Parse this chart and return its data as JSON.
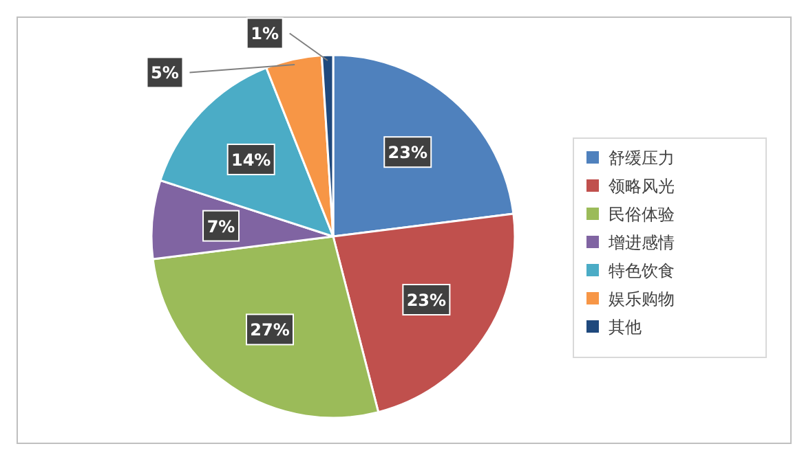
{
  "chart_data": {
    "type": "pie",
    "categories": [
      "舒缓压力",
      "领略风光",
      "民俗体验",
      "增进感情",
      "特色饮食",
      "娱乐购物",
      "其他"
    ],
    "values": [
      23,
      23,
      27,
      7,
      14,
      5,
      1
    ],
    "colors": [
      "#4f81bd",
      "#c0504d",
      "#9bbb59",
      "#8064a2",
      "#4bacc6",
      "#f79646",
      "#1f497d"
    ],
    "value_labels": [
      "23%",
      "23%",
      "27%",
      "7%",
      "14%",
      "5%",
      "1%"
    ],
    "legend": "right"
  }
}
